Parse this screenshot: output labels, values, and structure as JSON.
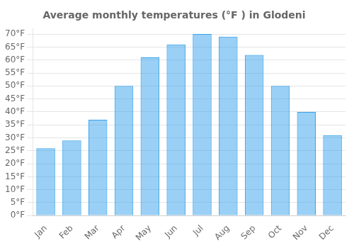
{
  "chart_data": {
    "type": "bar",
    "title": "Average monthly temperatures (°F ) in Glodeni",
    "categories": [
      "Jan",
      "Feb",
      "Mar",
      "Apr",
      "May",
      "Jun",
      "Jul",
      "Aug",
      "Sep",
      "Oct",
      "Nov",
      "Dec"
    ],
    "values": [
      26,
      29,
      37,
      50,
      61,
      66,
      70,
      69,
      62,
      50,
      40,
      31
    ],
    "ylim": [
      0,
      72
    ],
    "yticks": [
      {
        "value": 0,
        "label": "0°F"
      },
      {
        "value": 5,
        "label": "5°F"
      },
      {
        "value": 10,
        "label": "10°F"
      },
      {
        "value": 15,
        "label": "15°F"
      },
      {
        "value": 20,
        "label": "20°F"
      },
      {
        "value": 25,
        "label": "25°F"
      },
      {
        "value": 30,
        "label": "30°F"
      },
      {
        "value": 35,
        "label": "35°F"
      },
      {
        "value": 40,
        "label": "40°F"
      },
      {
        "value": 45,
        "label": "45°F"
      },
      {
        "value": 50,
        "label": "50°F"
      },
      {
        "value": 55,
        "label": "55°F"
      },
      {
        "value": 60,
        "label": "60°F"
      },
      {
        "value": 65,
        "label": "65°F"
      },
      {
        "value": 70,
        "label": "70°F"
      }
    ],
    "grid": true
  }
}
